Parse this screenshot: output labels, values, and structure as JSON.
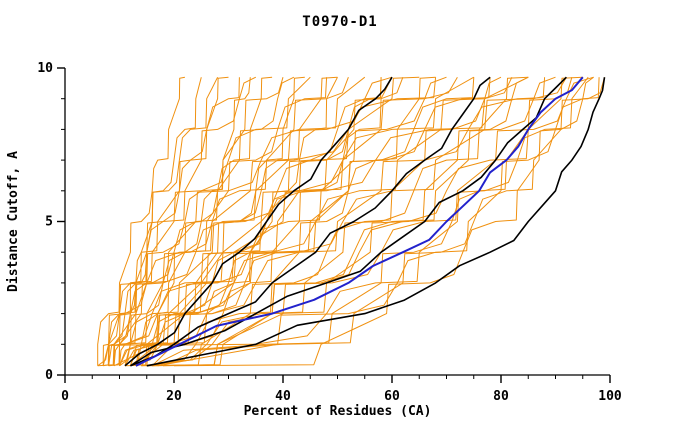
{
  "chart_data": {
    "type": "line",
    "title": "T0970-D1",
    "xlabel": "Percent of Residues (CA)",
    "ylabel": "Distance Cutoff, A",
    "xlim": [
      0,
      100
    ],
    "ylim": [
      0,
      10
    ],
    "x_ticks": [
      0,
      20,
      40,
      60,
      80,
      100
    ],
    "y_ticks": [
      0,
      5,
      10
    ],
    "x_minor_step": 5,
    "y_minor_step": 1,
    "grid": false,
    "legend": "none",
    "y_grid": [
      0.3,
      1,
      2,
      3,
      4,
      5,
      6,
      7,
      8,
      9,
      9.7
    ],
    "series_groups": [
      {
        "name": "prediction",
        "color": "#f09110",
        "width": 1,
        "jag": 0.45,
        "curves": [
          [
            8,
            9,
            12,
            12,
            15,
            16,
            19,
            21,
            23,
            26,
            28
          ],
          [
            10,
            10,
            12,
            13,
            14,
            17,
            21,
            23,
            26,
            30,
            32
          ],
          [
            7,
            8,
            10,
            14,
            15,
            18,
            22,
            25,
            28,
            32,
            35
          ],
          [
            9,
            10,
            13,
            15,
            18,
            22,
            25,
            29,
            33,
            37,
            40
          ],
          [
            12,
            14,
            17,
            19,
            22,
            25,
            28,
            31,
            34,
            36,
            38
          ],
          [
            8,
            9,
            11,
            13,
            16,
            20,
            25,
            30,
            35,
            41,
            45
          ],
          [
            11,
            12,
            15,
            18,
            22,
            26,
            30,
            35,
            39,
            44,
            48
          ],
          [
            6,
            9,
            13,
            16,
            20,
            24,
            28,
            32,
            36,
            39,
            42
          ],
          [
            10,
            11,
            15,
            18,
            23,
            27,
            32,
            37,
            42,
            48,
            52
          ],
          [
            13,
            16,
            20,
            24,
            28,
            32,
            36,
            39,
            43,
            47,
            50
          ],
          [
            9,
            10,
            12,
            15,
            19,
            24,
            30,
            36,
            43,
            50,
            55
          ],
          [
            14,
            17,
            22,
            27,
            31,
            36,
            41,
            45,
            50,
            55,
            58
          ],
          [
            8,
            10,
            14,
            18,
            24,
            29,
            35,
            41,
            48,
            55,
            60
          ],
          [
            12,
            16,
            21,
            26,
            32,
            37,
            42,
            48,
            53,
            58,
            62
          ],
          [
            10,
            12,
            16,
            21,
            27,
            33,
            39,
            45,
            52,
            60,
            65
          ],
          [
            15,
            22,
            29,
            34,
            38,
            43,
            47,
            51,
            54,
            58,
            60
          ],
          [
            7,
            8,
            11,
            15,
            21,
            27,
            34,
            42,
            52,
            61,
            68
          ],
          [
            11,
            15,
            22,
            28,
            34,
            41,
            47,
            53,
            59,
            66,
            70
          ],
          [
            13,
            15,
            19,
            25,
            31,
            37,
            44,
            51,
            58,
            66,
            72
          ],
          [
            16,
            24,
            32,
            38,
            43,
            48,
            52,
            57,
            61,
            65,
            68
          ],
          [
            9,
            11,
            16,
            22,
            29,
            36,
            43,
            51,
            60,
            68,
            75
          ],
          [
            12,
            17,
            24,
            31,
            38,
            45,
            52,
            59,
            66,
            73,
            78
          ],
          [
            14,
            25,
            34,
            42,
            48,
            55,
            60,
            66,
            71,
            77,
            80
          ],
          [
            10,
            15,
            23,
            31,
            38,
            46,
            54,
            61,
            69,
            77,
            82
          ],
          [
            15,
            26,
            36,
            44,
            51,
            58,
            64,
            70,
            76,
            81,
            85
          ],
          [
            8,
            11,
            17,
            24,
            31,
            40,
            48,
            57,
            67,
            77,
            85
          ],
          [
            13,
            18,
            27,
            35,
            43,
            50,
            58,
            66,
            74,
            83,
            88
          ],
          [
            16,
            28,
            38,
            47,
            54,
            62,
            68,
            74,
            80,
            86,
            90
          ],
          [
            11,
            17,
            26,
            34,
            43,
            51,
            60,
            68,
            77,
            86,
            92
          ],
          [
            14,
            27,
            38,
            48,
            56,
            63,
            70,
            78,
            85,
            91,
            95
          ],
          [
            12,
            35,
            48,
            57,
            65,
            72,
            77,
            83,
            88,
            93,
            96
          ],
          [
            17,
            39,
            52,
            61,
            68,
            74,
            80,
            85,
            90,
            95,
            98
          ],
          [
            15,
            28,
            40,
            49,
            58,
            66,
            72,
            79,
            86,
            92,
            97
          ],
          [
            18,
            40,
            53,
            62,
            69,
            75,
            81,
            86,
            91,
            96,
            99
          ],
          [
            6,
            8,
            10,
            13,
            15,
            18,
            21,
            23,
            26,
            28,
            30
          ],
          [
            7,
            8,
            10,
            12,
            14,
            16,
            18,
            20,
            22,
            24,
            25
          ],
          [
            16,
            20,
            27,
            33,
            39,
            46,
            52,
            58,
            64,
            70,
            75
          ],
          [
            18,
            29,
            38,
            46,
            53,
            60,
            66,
            72,
            78,
            82,
            85
          ],
          [
            10,
            14,
            17,
            20,
            22,
            25,
            27,
            29,
            31,
            33,
            34
          ],
          [
            12,
            17,
            22,
            25,
            29,
            32,
            35,
            37,
            40,
            42,
            44
          ],
          [
            8,
            19,
            26,
            31,
            34,
            38,
            41,
            43,
            46,
            48,
            50
          ],
          [
            9,
            17,
            24,
            30,
            34,
            39,
            43,
            48,
            52,
            56,
            58
          ],
          [
            20,
            47,
            59,
            67,
            73,
            79,
            83,
            87,
            91,
            95,
            97
          ],
          [
            16,
            37,
            49,
            58,
            64,
            71,
            76,
            81,
            85,
            90,
            93
          ],
          [
            6,
            6,
            8,
            10,
            12,
            14,
            16,
            17,
            19,
            21,
            22
          ]
        ]
      },
      {
        "name": "reference-black",
        "color": "#000000",
        "width": 1.6,
        "jag": 0.12,
        "curves": [
          [
            11,
            17,
            22,
            27,
            32,
            37,
            42,
            47,
            52,
            57,
            60
          ],
          [
            12,
            20,
            30,
            38,
            46,
            53,
            60,
            66,
            71,
            75,
            78
          ],
          [
            12,
            22,
            35,
            48,
            58,
            66,
            73,
            79,
            84,
            88,
            92
          ],
          [
            15,
            35,
            55,
            68,
            78,
            85,
            90,
            93,
            96,
            98,
            99
          ]
        ]
      },
      {
        "name": "highlight-blue",
        "color": "#2222cc",
        "width": 2,
        "jag": 0.1,
        "curves": [
          [
            13,
            21,
            38,
            52,
            62,
            70,
            76,
            81,
            85,
            90,
            95
          ]
        ]
      }
    ]
  }
}
